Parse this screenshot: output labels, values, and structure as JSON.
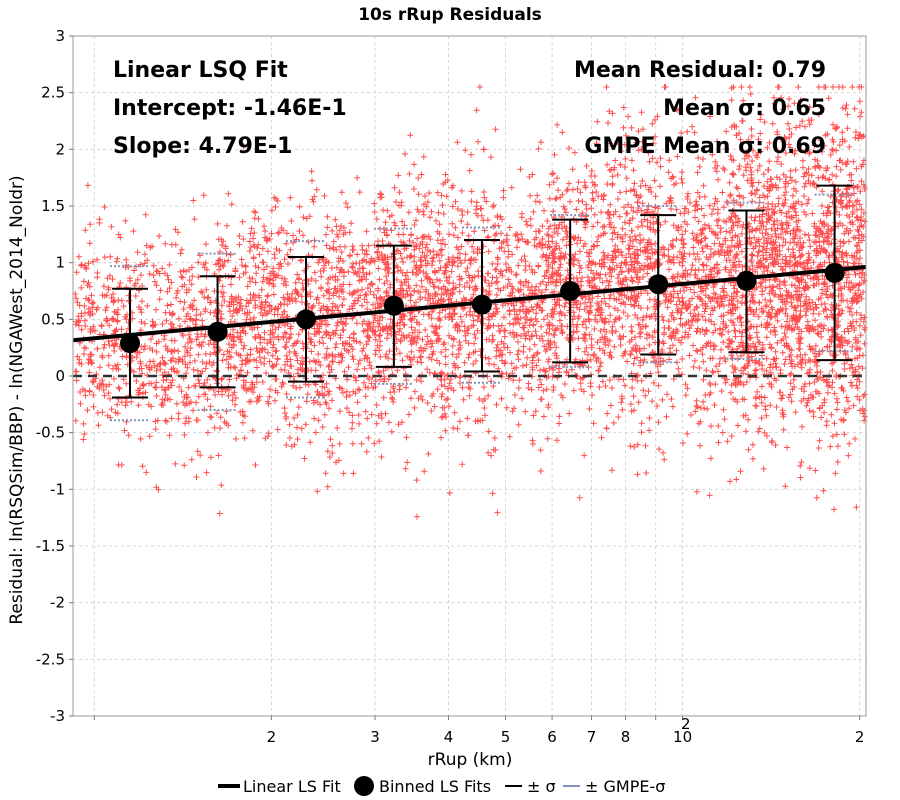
{
  "chart_data": {
    "type": "scatter",
    "title": "10s rRup Residuals",
    "xlabel": "rRup (km)",
    "ylabel": "Residual: ln(RSQSim/BBP) - ln(NGAWest_2014_NoIdr)",
    "x_scale": "log",
    "xlim": [
      9.2,
      205
    ],
    "ylim": [
      -3,
      3
    ],
    "grid": true,
    "y_ticks": [
      "-3",
      "-2.5",
      "-2",
      "-1.5",
      "-1",
      "-0.5",
      "0",
      "0.5",
      "1",
      "1.5",
      "2",
      "2.5",
      "3"
    ],
    "x_ticks": [
      {
        "value": 20,
        "label": "2"
      },
      {
        "value": 30,
        "label": "3"
      },
      {
        "value": 40,
        "label": "4"
      },
      {
        "value": 50,
        "label": "5"
      },
      {
        "value": 60,
        "label": "6"
      },
      {
        "value": 70,
        "label": "7"
      },
      {
        "value": 80,
        "label": "8"
      },
      {
        "value": 100,
        "label": "10"
      },
      {
        "value": 200,
        "label": "2"
      }
    ],
    "x_tick_exponent": "2",
    "annotations": {
      "fit_title": "Linear LSQ Fit",
      "intercept": "Intercept: -1.46E-1",
      "slope": "Slope: 4.79E-1",
      "mean_residual": "Mean Residual: 0.79",
      "mean_sigma": "Mean σ: 0.65",
      "gmpe_mean_sigma": "GMPE Mean σ: 0.69"
    },
    "linear_fit": {
      "intercept": -0.146,
      "slope": 0.479
    },
    "binned_fits": [
      {
        "x": 11.5,
        "y": 0.29,
        "sigma_lo": -0.19,
        "sigma_hi": 0.77,
        "gmpe_lo": -0.39,
        "gmpe_hi": 0.97
      },
      {
        "x": 16.2,
        "y": 0.39,
        "sigma_lo": -0.1,
        "sigma_hi": 0.88,
        "gmpe_lo": -0.3,
        "gmpe_hi": 1.08
      },
      {
        "x": 22.9,
        "y": 0.5,
        "sigma_lo": -0.05,
        "sigma_hi": 1.05,
        "gmpe_lo": -0.19,
        "gmpe_hi": 1.19
      },
      {
        "x": 32.3,
        "y": 0.62,
        "sigma_lo": 0.08,
        "sigma_hi": 1.15,
        "gmpe_lo": -0.07,
        "gmpe_hi": 1.3
      },
      {
        "x": 45.6,
        "y": 0.63,
        "sigma_lo": 0.04,
        "sigma_hi": 1.2,
        "gmpe_lo": -0.06,
        "gmpe_hi": 1.31
      },
      {
        "x": 64.4,
        "y": 0.75,
        "sigma_lo": 0.12,
        "sigma_hi": 1.38,
        "gmpe_lo": 0.08,
        "gmpe_hi": 1.42
      },
      {
        "x": 90.9,
        "y": 0.81,
        "sigma_lo": 0.19,
        "sigma_hi": 1.42,
        "gmpe_lo": 0.12,
        "gmpe_hi": 1.5
      },
      {
        "x": 128.4,
        "y": 0.84,
        "sigma_lo": 0.21,
        "sigma_hi": 1.46,
        "gmpe_lo": 0.15,
        "gmpe_hi": 1.53
      },
      {
        "x": 181.3,
        "y": 0.91,
        "sigma_lo": 0.14,
        "sigma_hi": 1.68,
        "gmpe_lo": 0.22,
        "gmpe_hi": 1.6
      }
    ],
    "scatter_density": [
      {
        "x_min": 9.2,
        "x_max": 16,
        "y_mean": 0.3,
        "y_sd": 0.45
      },
      {
        "x_min": 16,
        "x_max": 30,
        "y_mean": 0.45,
        "y_sd": 0.5
      },
      {
        "x_min": 30,
        "x_max": 60,
        "y_mean": 0.62,
        "y_sd": 0.55
      },
      {
        "x_min": 60,
        "x_max": 120,
        "y_mean": 0.8,
        "y_sd": 0.6
      },
      {
        "x_min": 120,
        "x_max": 205,
        "y_mean": 0.88,
        "y_sd": 0.7
      }
    ],
    "legend": {
      "position": "bottom",
      "items": [
        {
          "label": "Linear LS Fit",
          "kind": "line"
        },
        {
          "label": "Binned LS Fits",
          "kind": "marker"
        },
        {
          "label": "± σ",
          "kind": "line"
        },
        {
          "label": "± GMPE-σ",
          "kind": "line"
        }
      ]
    },
    "colors": {
      "scatter": "#ff4d4d",
      "fit_line": "#000000",
      "sigma": "#000000",
      "gmpe_sigma": "#7f95b8",
      "grid": "#d4d4d4"
    }
  }
}
